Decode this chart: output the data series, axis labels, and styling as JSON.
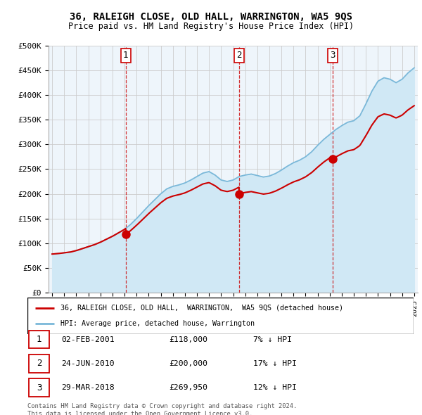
{
  "title": "36, RALEIGH CLOSE, OLD HALL, WARRINGTON, WA5 9QS",
  "subtitle": "Price paid vs. HM Land Registry's House Price Index (HPI)",
  "ylim": [
    0,
    500000
  ],
  "yticks": [
    0,
    50000,
    100000,
    150000,
    200000,
    250000,
    300000,
    350000,
    400000,
    450000,
    500000
  ],
  "ytick_labels": [
    "£0",
    "£50K",
    "£100K",
    "£150K",
    "£200K",
    "£250K",
    "£300K",
    "£350K",
    "£400K",
    "£450K",
    "£500K"
  ],
  "hpi_color": "#7ab8d9",
  "hpi_fill_color": "#d0e8f5",
  "price_color": "#cc0000",
  "sale_marker_color": "#cc0000",
  "vline_color": "#cc0000",
  "grid_color": "#cccccc",
  "chart_bg_color": "#eef5fb",
  "sale1_date": 2001.09,
  "sale1_price": 118000,
  "sale2_date": 2010.48,
  "sale2_price": 200000,
  "sale3_date": 2018.23,
  "sale3_price": 269950,
  "legend_line1": "36, RALEIGH CLOSE, OLD HALL,  WARRINGTON,  WA5 9QS (detached house)",
  "legend_line2": "HPI: Average price, detached house, Warrington",
  "table_row1": [
    "1",
    "02-FEB-2001",
    "£118,000",
    "7% ↓ HPI"
  ],
  "table_row2": [
    "2",
    "24-JUN-2010",
    "£200,000",
    "17% ↓ HPI"
  ],
  "table_row3": [
    "3",
    "29-MAR-2018",
    "£269,950",
    "12% ↓ HPI"
  ],
  "footer": "Contains HM Land Registry data © Crown copyright and database right 2024.\nThis data is licensed under the Open Government Licence v3.0.",
  "hpi_years": [
    1995.0,
    1995.5,
    1996.0,
    1996.5,
    1997.0,
    1997.5,
    1998.0,
    1998.5,
    1999.0,
    1999.5,
    2000.0,
    2000.5,
    2001.0,
    2001.5,
    2002.0,
    2002.5,
    2003.0,
    2003.5,
    2004.0,
    2004.5,
    2005.0,
    2005.5,
    2006.0,
    2006.5,
    2007.0,
    2007.5,
    2008.0,
    2008.5,
    2009.0,
    2009.5,
    2010.0,
    2010.5,
    2011.0,
    2011.5,
    2012.0,
    2012.5,
    2013.0,
    2013.5,
    2014.0,
    2014.5,
    2015.0,
    2015.5,
    2016.0,
    2016.5,
    2017.0,
    2017.5,
    2018.0,
    2018.5,
    2019.0,
    2019.5,
    2020.0,
    2020.5,
    2021.0,
    2021.5,
    2022.0,
    2022.5,
    2023.0,
    2023.5,
    2024.0,
    2024.5,
    2025.0
  ],
  "hpi_values": [
    78000,
    79000,
    80500,
    82000,
    85000,
    89000,
    93000,
    97000,
    102000,
    108000,
    114000,
    121000,
    128000,
    138000,
    150000,
    163000,
    176000,
    188000,
    200000,
    210000,
    215000,
    218000,
    222000,
    228000,
    235000,
    242000,
    245000,
    238000,
    228000,
    225000,
    228000,
    235000,
    238000,
    240000,
    237000,
    234000,
    236000,
    241000,
    248000,
    256000,
    263000,
    268000,
    275000,
    285000,
    298000,
    310000,
    320000,
    330000,
    338000,
    345000,
    348000,
    358000,
    382000,
    408000,
    428000,
    435000,
    432000,
    425000,
    432000,
    445000,
    455000
  ]
}
